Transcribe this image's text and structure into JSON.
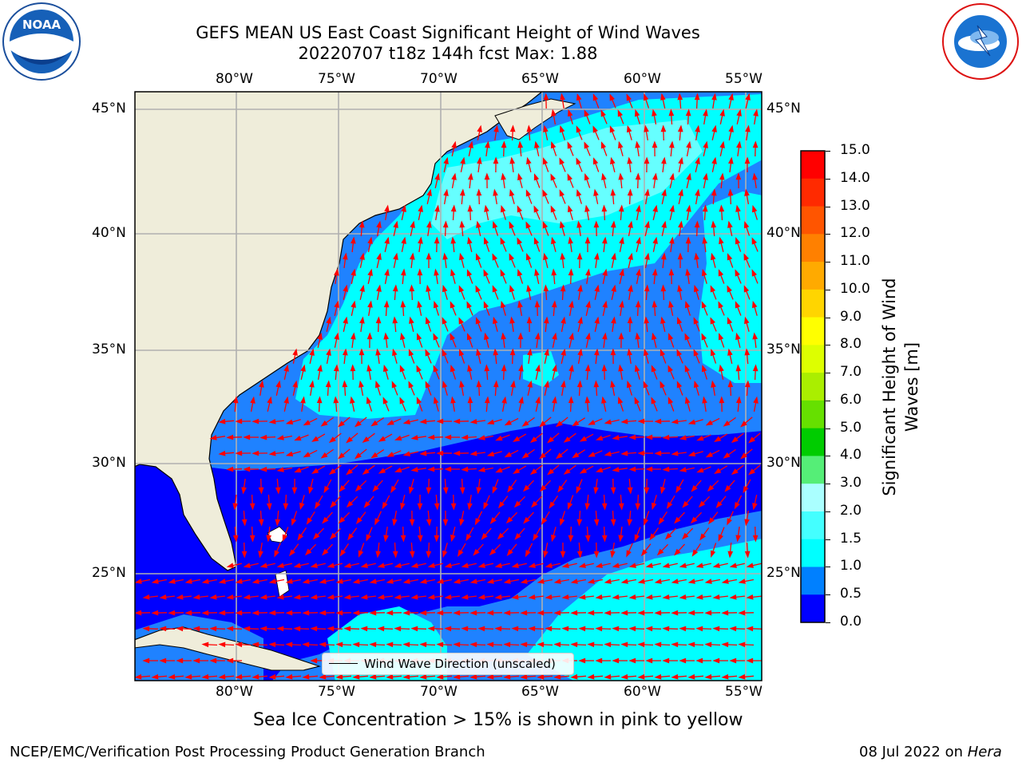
{
  "title": {
    "line1": "GEFS MEAN US East Coast Significant Height of Wind Waves",
    "line2": "20220707 t18z 144h fcst   Max: 1.88"
  },
  "logos": {
    "left": "NOAA",
    "left_ring": "NATIONAL OCEANIC AND ATMOSPHERIC ADMINISTRATION · U.S. DEPARTMENT OF COMMERCE",
    "right_ring": "NATIONAL WEATHER SERVICE"
  },
  "axes": {
    "lon_ticks": [
      "80°W",
      "75°W",
      "70°W",
      "65°W",
      "60°W",
      "55°W"
    ],
    "lat_ticks": [
      "45°N",
      "40°N",
      "35°N",
      "30°N",
      "25°N"
    ]
  },
  "legend": {
    "label": "Wind Wave Direction (unscaled)"
  },
  "colorbar": {
    "label_line1": "Significant Height of Wind",
    "label_line2": "Waves [m]",
    "ticks": [
      "15.0",
      "14.0",
      "13.0",
      "12.0",
      "11.0",
      "10.0",
      "9.0",
      "8.0",
      "7.0",
      "6.0",
      "5.0",
      "4.0",
      "3.0",
      "2.0",
      "1.5",
      "1.0",
      "0.5",
      "0.0"
    ],
    "colors": [
      "#ff0000",
      "#ff2a00",
      "#ff5500",
      "#ff8000",
      "#ffaa00",
      "#ffd500",
      "#ffff00",
      "#ddff00",
      "#aaee00",
      "#66e000",
      "#00cc00",
      "#55ee77",
      "#aaffff",
      "#44ffff",
      "#00ffff",
      "#0080ff",
      "#0000ff"
    ]
  },
  "note": "Sea Ice Concentration > 15% is shown in pink to yellow",
  "footer": {
    "left": "NCEP/EMC/Verification Post Processing Product Generation Branch",
    "right_prefix": "08 Jul 2022 on ",
    "right_host": "Hera"
  },
  "map_colors": {
    "land": "#efedda",
    "blue": "#0000ff",
    "mid": "#1f82ff",
    "cyan": "#00ffff",
    "light": "#66ffff",
    "arrow": "#ff0000",
    "grid": "#b0b0b0"
  }
}
